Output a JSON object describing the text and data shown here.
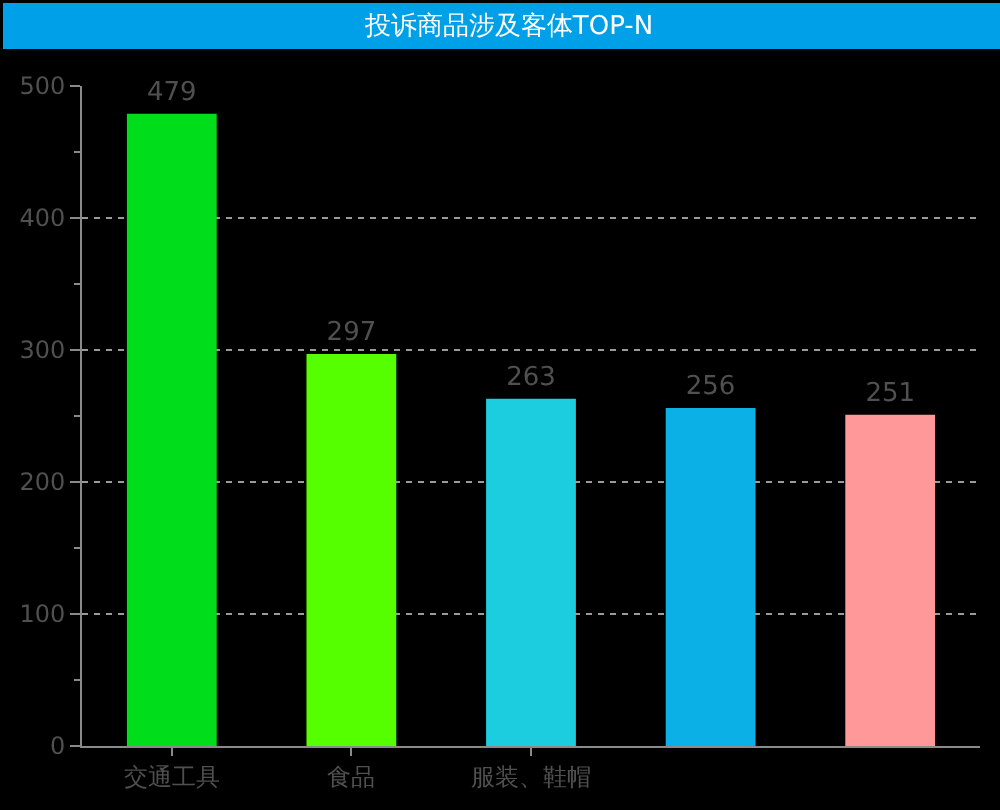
{
  "chart_data": {
    "type": "bar",
    "title": "投诉商品涉及客体TOP-N",
    "categories": [
      "交通工具",
      "食品",
      "服装、鞋帽",
      null,
      null
    ],
    "values": [
      479,
      297,
      263,
      256,
      251
    ],
    "colors": [
      "#00dd1a",
      "#55ff00",
      "#1ccde0",
      "#0ab0e6",
      "#ff9999"
    ],
    "ylim": [
      0,
      500
    ],
    "yticks": [
      0,
      100,
      200,
      300,
      400,
      500
    ],
    "grid": "y",
    "data_labels": true
  }
}
